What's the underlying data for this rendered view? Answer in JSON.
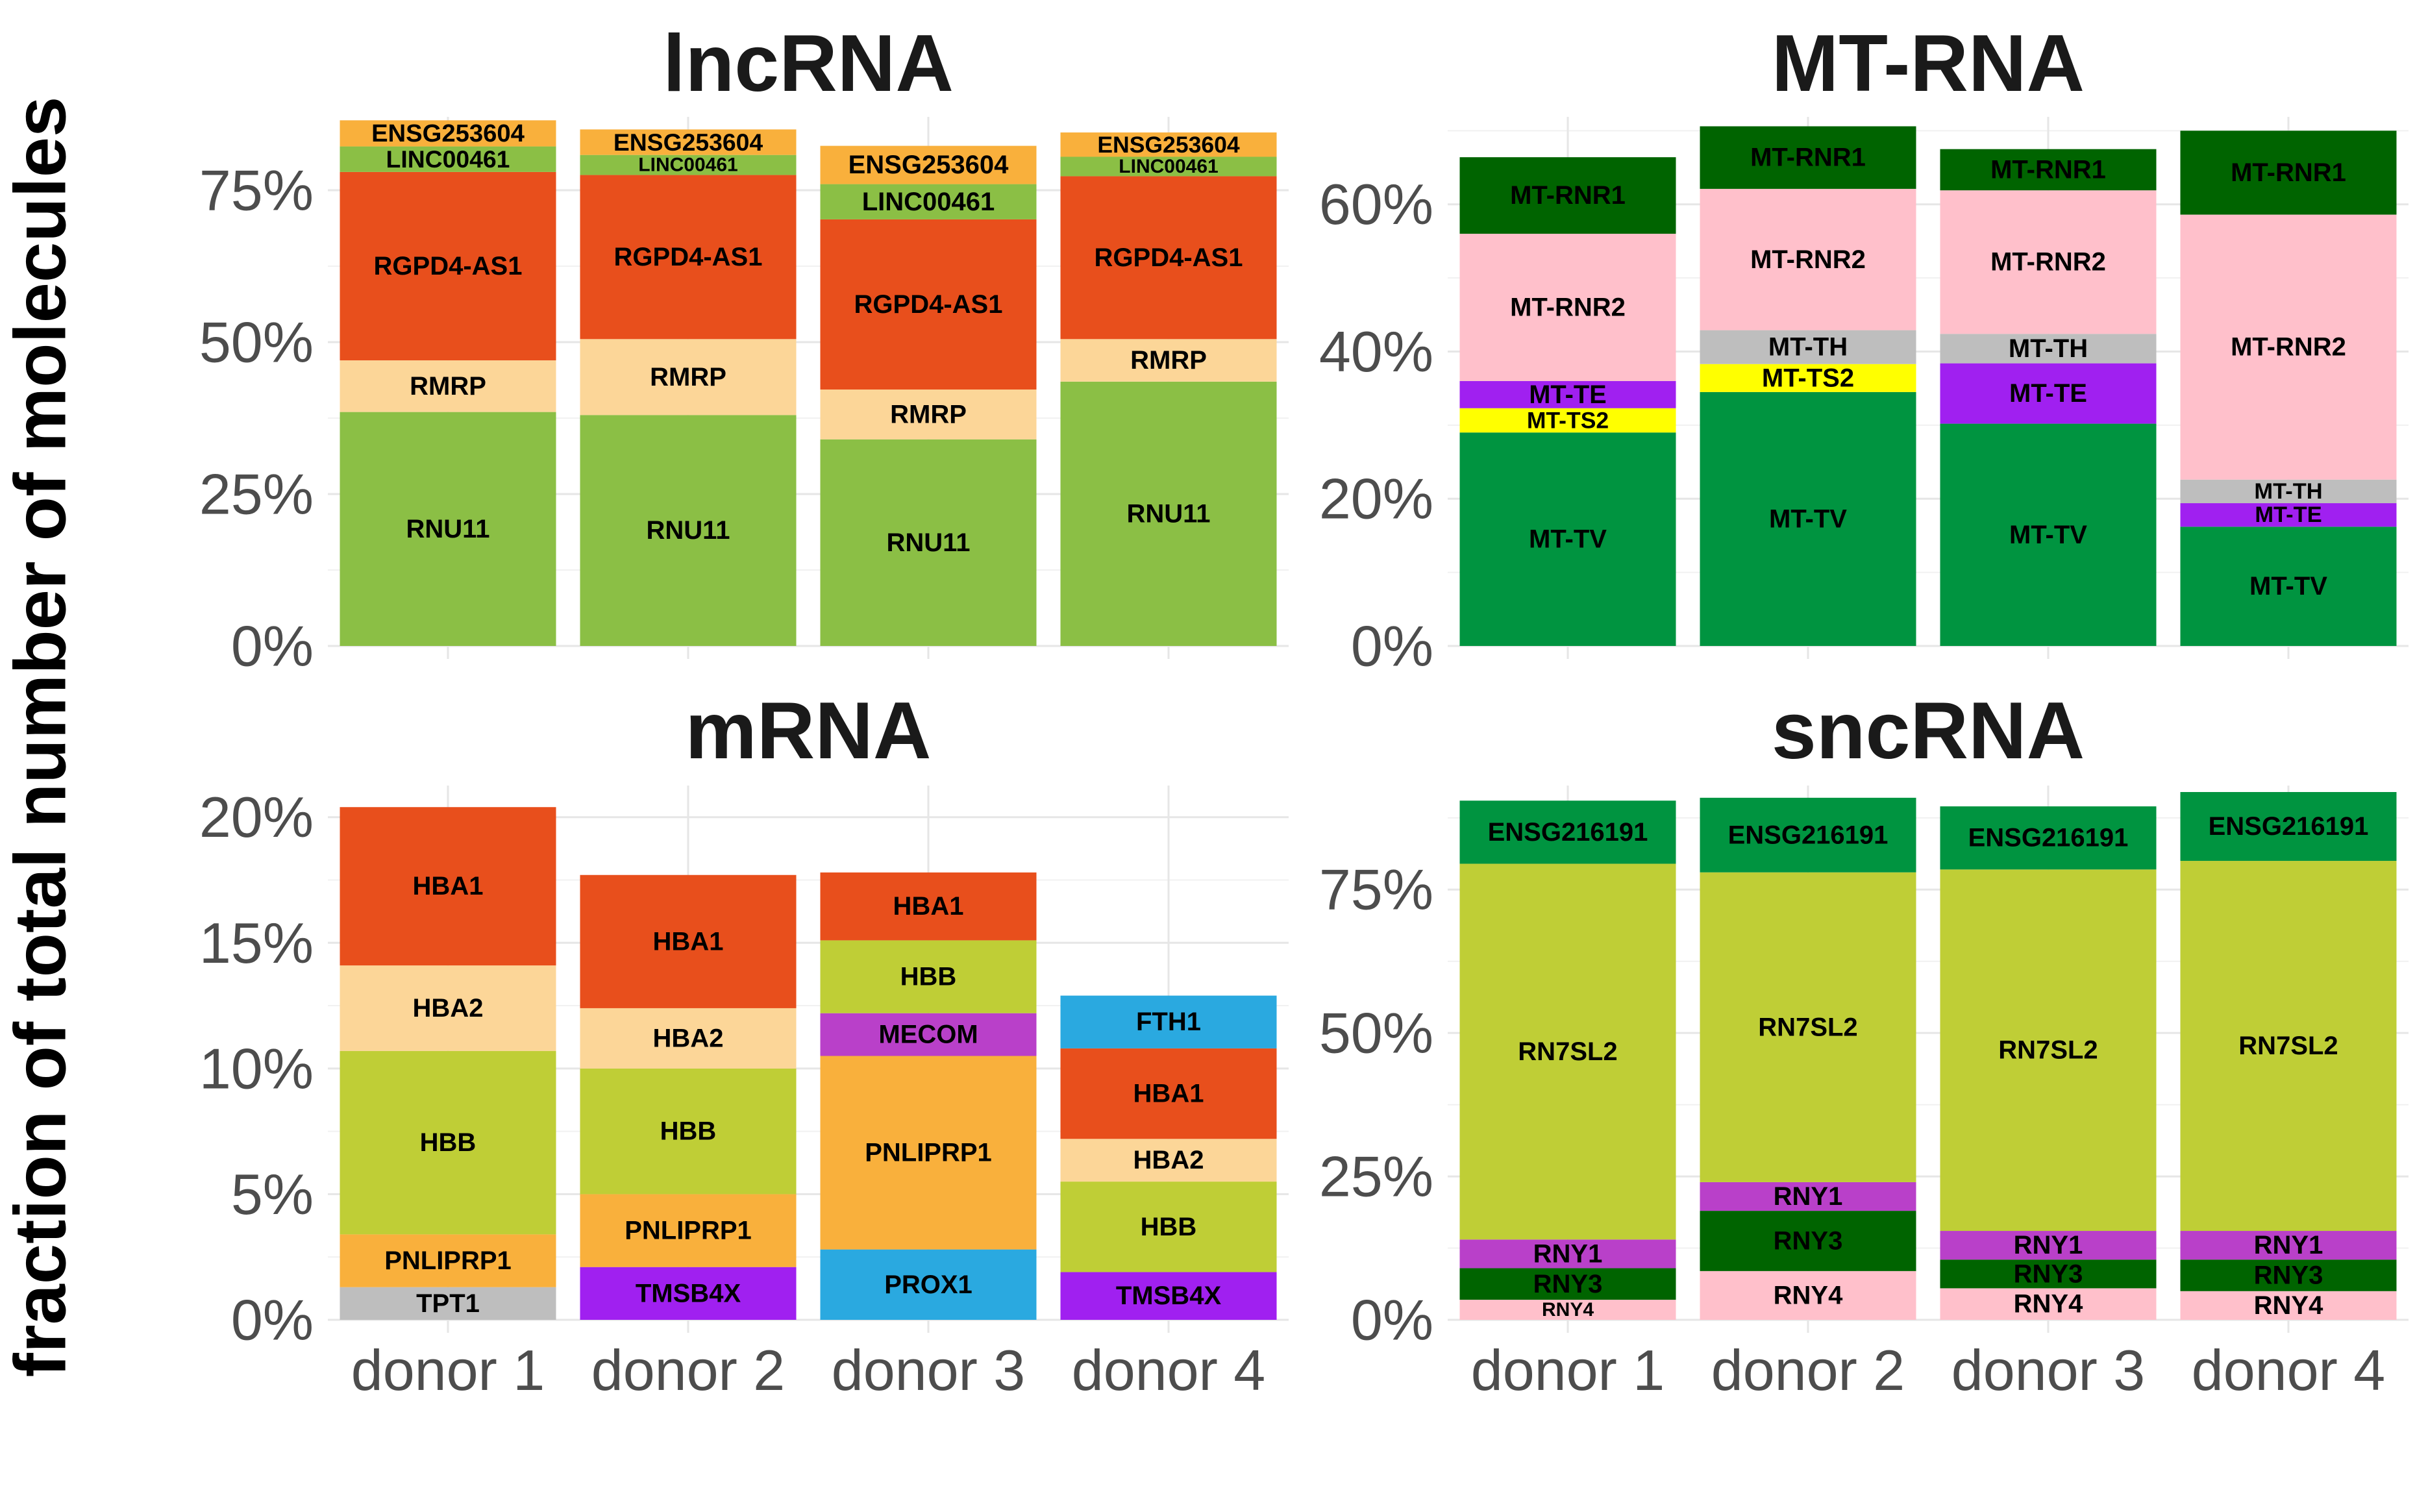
{
  "ylabel": "fraction of total number of molecules",
  "chart_data": [
    {
      "type": "bar",
      "stacked": true,
      "title": "lncRNA",
      "categories": [
        "donor 1",
        "donor 2",
        "donor 3",
        "donor 4"
      ],
      "ylim": [
        0,
        86
      ],
      "yticks": [
        0,
        25,
        50,
        75
      ],
      "ytick_labels": [
        "0%",
        "25%",
        "50%",
        "75%"
      ],
      "grid": true,
      "show_x_labels": false,
      "series": [
        {
          "name": "RNU11",
          "color": "#8bbf45",
          "values": [
            38.5,
            38,
            34,
            43.5
          ]
        },
        {
          "name": "RMRP",
          "color": "#fcd698",
          "values": [
            8.5,
            12.5,
            8.2,
            7
          ]
        },
        {
          "name": "RGPD4-AS1",
          "color": "#e84f1c",
          "values": [
            31,
            27,
            28,
            26.8
          ]
        },
        {
          "name": "LINC00461",
          "color": "#8bbf45",
          "values": [
            4.2,
            3.3,
            5.8,
            3.2
          ]
        },
        {
          "name": "ENSG253604",
          "color": "#f9b03c",
          "values": [
            4.3,
            4.2,
            6.3,
            4
          ]
        }
      ]
    },
    {
      "type": "bar",
      "stacked": true,
      "title": "MT-RNA",
      "categories": [
        "donor 1",
        "donor 2",
        "donor 3",
        "donor 4"
      ],
      "ylim": [
        0,
        71
      ],
      "yticks": [
        0,
        20,
        40,
        60
      ],
      "ytick_labels": [
        "0%",
        "20%",
        "40%",
        "60%"
      ],
      "grid": true,
      "show_x_labels": false,
      "series": [
        {
          "name": "MT-TV",
          "color": "#009440",
          "values": [
            29,
            34.5,
            30.2,
            16.2
          ]
        },
        {
          "name": "MT-TS2",
          "color": "#ffff00",
          "values": [
            3.3,
            3.8,
            0,
            0
          ]
        },
        {
          "name": "MT-TE",
          "color": "#a020f0",
          "values": [
            3.7,
            0,
            8.2,
            3.2
          ]
        },
        {
          "name": "MT-TH",
          "color": "#bebebe",
          "values": [
            0,
            4.6,
            4,
            3.2
          ]
        },
        {
          "name": "MT-RNR2",
          "color": "#ffc0cb",
          "values": [
            20,
            19.2,
            19.5,
            36
          ]
        },
        {
          "name": "MT-RNR1",
          "color": "#006400",
          "values": [
            10.4,
            8.5,
            5.6,
            11.4
          ]
        }
      ]
    },
    {
      "type": "bar",
      "stacked": true,
      "title": "mRNA",
      "categories": [
        "donor 1",
        "donor 2",
        "donor 3",
        "donor 4"
      ],
      "ylim": [
        0,
        21
      ],
      "yticks": [
        0,
        5,
        10,
        15,
        20
      ],
      "ytick_labels": [
        "0%",
        "5%",
        "10%",
        "15%",
        "20%"
      ],
      "grid": true,
      "show_x_labels": true,
      "series": [
        {
          "name": "TPT1",
          "color": "#bebebe",
          "values": [
            1.3,
            0,
            0,
            0
          ]
        },
        {
          "name": "TMSB4X",
          "color": "#a020f0",
          "values": [
            0,
            2.1,
            0,
            1.9
          ]
        },
        {
          "name": "PROX1",
          "color": "#2aa9e0",
          "values": [
            0,
            0,
            2.8,
            0
          ]
        },
        {
          "name": "PNLIPRP1",
          "color": "#f9b03c",
          "values": [
            2.1,
            2.9,
            7.7,
            0
          ]
        },
        {
          "name": "HBB",
          "color": "#bfce36",
          "values": [
            7.3,
            5.0,
            0,
            3.6
          ]
        },
        {
          "name": "MECOM",
          "color": "#b940c9",
          "values": [
            0,
            0,
            1.7,
            0
          ]
        },
        {
          "name": "HBB",
          "color": "#bfce36",
          "values": [
            0,
            0,
            2.9,
            0
          ]
        },
        {
          "name": "HBA2",
          "color": "#fcd698",
          "values": [
            3.4,
            2.4,
            0,
            1.7
          ]
        },
        {
          "name": "HBA1",
          "color": "#e84f1c",
          "values": [
            6.3,
            5.3,
            2.7,
            3.6
          ]
        },
        {
          "name": "FTH1",
          "color": "#2aa9e0",
          "values": [
            0,
            0,
            0,
            2.1
          ]
        }
      ]
    },
    {
      "type": "bar",
      "stacked": true,
      "title": "sncRNA",
      "categories": [
        "donor 1",
        "donor 2",
        "donor 3",
        "donor 4"
      ],
      "ylim": [
        0,
        92
      ],
      "yticks": [
        0,
        25,
        50,
        75
      ],
      "ytick_labels": [
        "0%",
        "25%",
        "50%",
        "75%"
      ],
      "grid": true,
      "show_x_labels": true,
      "series": [
        {
          "name": "RNY4",
          "color": "#ffc0cb",
          "values": [
            3.5,
            8.5,
            5.5,
            5
          ]
        },
        {
          "name": "RNY3",
          "color": "#006400",
          "values": [
            5.5,
            10.5,
            5,
            5.5
          ]
        },
        {
          "name": "RNY1",
          "color": "#b940c9",
          "values": [
            5,
            5,
            5,
            5
          ]
        },
        {
          "name": "RN7SL2",
          "color": "#bfce36",
          "values": [
            65.5,
            54,
            63,
            64.5
          ]
        },
        {
          "name": "ENSG216191",
          "color": "#009440",
          "values": [
            11,
            13,
            11,
            12
          ]
        }
      ]
    }
  ]
}
